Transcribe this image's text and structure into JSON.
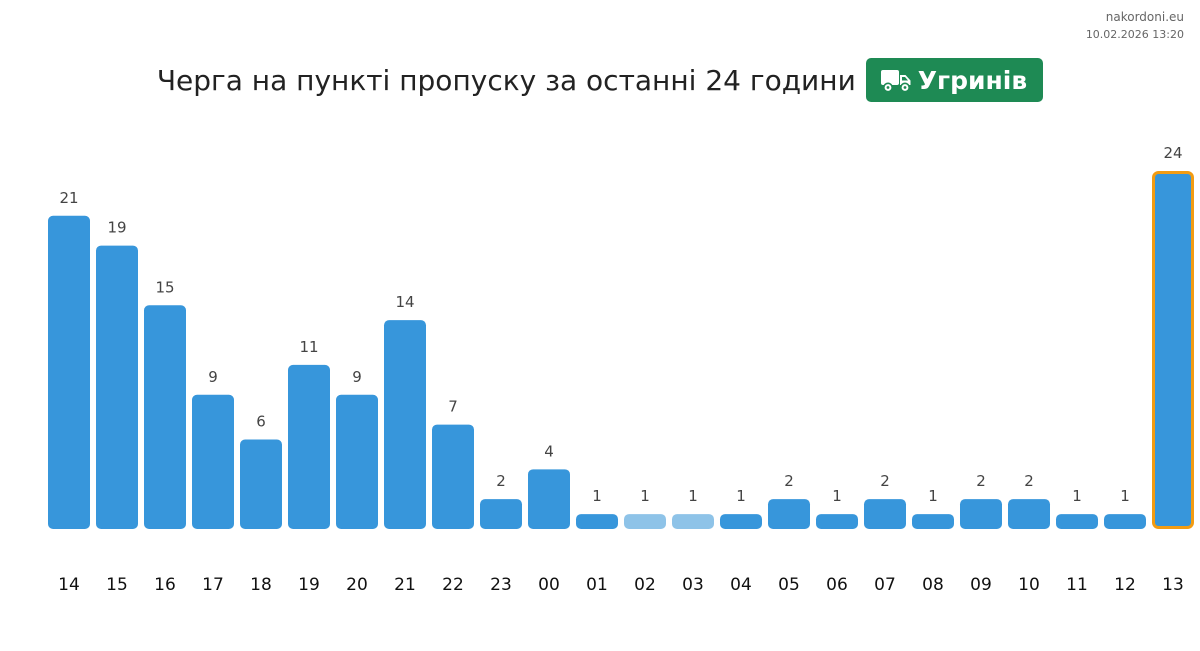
{
  "source": {
    "site": "nakordoni.eu",
    "timestamp": "10.02.2026 13:20"
  },
  "header": {
    "title": "Черга на пункті пропуску за останні 24 години",
    "badge_label": "Угринів",
    "badge_icon": "truck-icon",
    "badge_color": "#1e8a54"
  },
  "chart_data": {
    "type": "bar",
    "categories": [
      "14",
      "15",
      "16",
      "17",
      "18",
      "19",
      "20",
      "21",
      "22",
      "23",
      "00",
      "01",
      "02",
      "03",
      "04",
      "05",
      "06",
      "07",
      "08",
      "09",
      "10",
      "11",
      "12",
      "13"
    ],
    "values": [
      21,
      19,
      15,
      9,
      6,
      11,
      9,
      14,
      7,
      2,
      4,
      1,
      1,
      1,
      1,
      2,
      1,
      2,
      1,
      2,
      2,
      1,
      1,
      24
    ],
    "data_labels": [
      "21",
      "19",
      "15",
      "9",
      "6",
      "11",
      "9",
      "14",
      "7",
      "2",
      "4",
      "1",
      "1",
      "1",
      "1",
      "2",
      "1",
      "2",
      "1",
      "2",
      "2",
      "1",
      "1",
      "24"
    ],
    "colors": {
      "bar": "#3796db",
      "bar_light": "#8ec3e8",
      "highlight_border": "#f39c12"
    },
    "light_bars": [
      "02",
      "03"
    ],
    "highlighted": "13",
    "title": "Черга на пункті пропуску за останні 24 години",
    "xlabel": "",
    "ylabel": "",
    "ylim": [
      0,
      24
    ],
    "grid": false,
    "legend": "none"
  }
}
